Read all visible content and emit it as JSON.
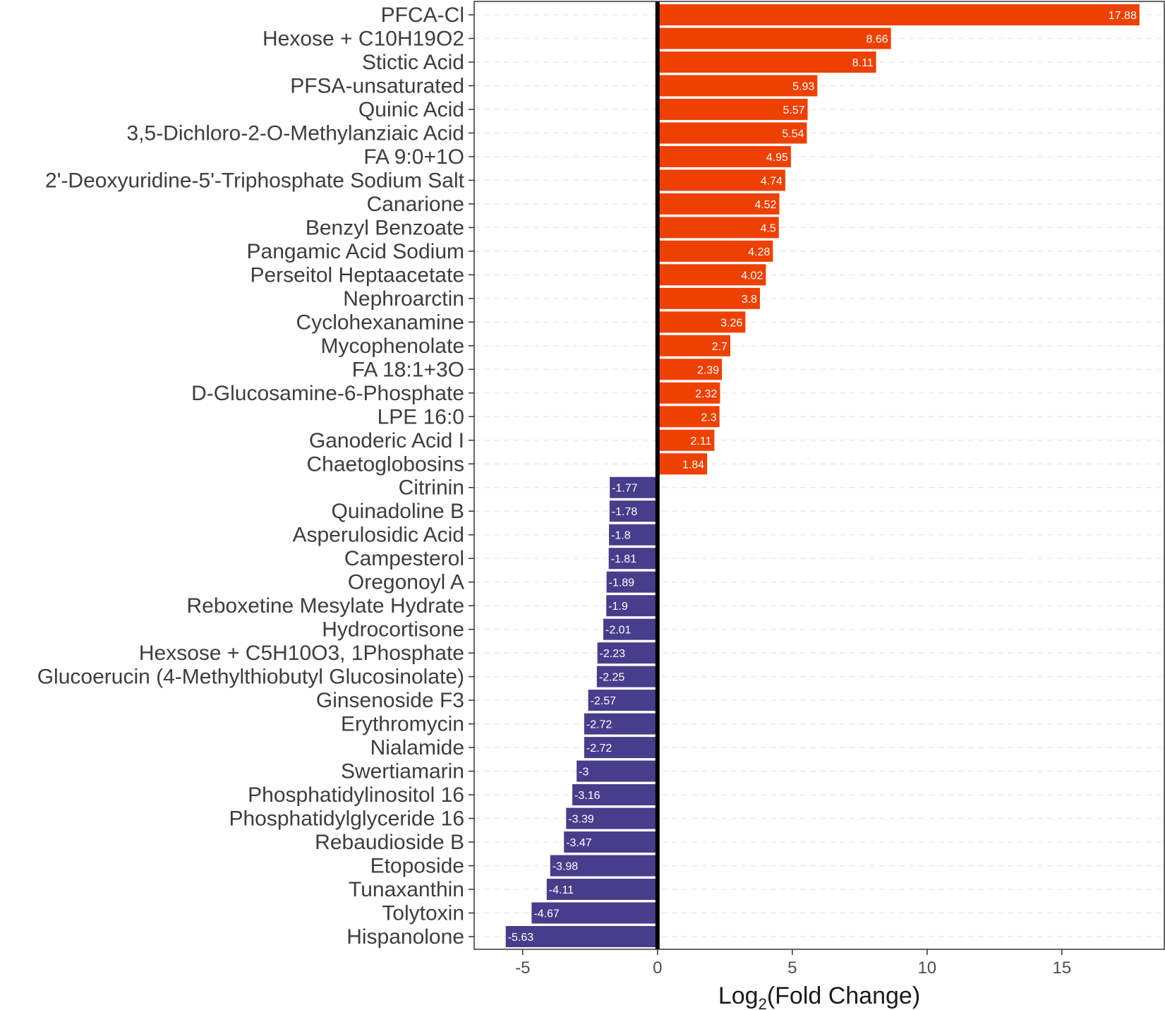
{
  "chart_data": {
    "type": "bar",
    "orientation": "horizontal",
    "title": "",
    "xlabel": "Log2(Fold Change)",
    "xlabel_parts": {
      "prefix": "Log",
      "subscript": "2",
      "suffix": "(Fold Change)"
    },
    "ylabel": "",
    "xlim": [
      -6.8,
      18.8
    ],
    "xticks": [
      -5,
      0,
      5,
      10,
      15
    ],
    "xtick_labels": [
      "-5",
      "0",
      "5",
      "10",
      "15"
    ],
    "grid": "dashed horizontal",
    "colors": {
      "positive": "#EE4000",
      "negative": "#483D8B",
      "zero_line": "#000000"
    },
    "categories": [
      "PFCA-Cl",
      "Hexose + C10H19O2",
      "Stictic Acid",
      "PFSA-unsaturated",
      "Quinic Acid",
      "3,5-Dichloro-2-O-Methylanziaic Acid",
      "FA 9:0+1O",
      "2'-Deoxyuridine-5'-Triphosphate Sodium Salt",
      "Canarione",
      "Benzyl Benzoate",
      "Pangamic Acid Sodium",
      "Perseitol Heptaacetate",
      "Nephroarctin",
      "Cyclohexanamine",
      "Mycophenolate",
      "FA 18:1+3O",
      "D-Glucosamine-6-Phosphate",
      "LPE 16:0",
      "Ganoderic Acid I",
      "Chaetoglobosins",
      "Citrinin",
      "Quinadoline B",
      "Asperulosidic Acid",
      "Campesterol",
      "Oregonoyl A",
      "Reboxetine Mesylate Hydrate",
      "Hydrocortisone",
      "Hexsose + C5H10O3, 1Phosphate",
      "Glucoerucin (4-Methylthiobutyl Glucosinolate)",
      "Ginsenoside F3",
      "Erythromycin",
      "Nialamide",
      "Swertiamarin",
      "Phosphatidylinositol 16",
      "Phosphatidylglyceride 16",
      "Rebaudioside B",
      "Etoposide",
      "Tunaxanthin",
      "Tolytoxin",
      "Hispanolone"
    ],
    "values": [
      17.88,
      8.66,
      8.11,
      5.93,
      5.57,
      5.54,
      4.95,
      4.74,
      4.52,
      4.5,
      4.28,
      4.02,
      3.8,
      3.26,
      2.7,
      2.39,
      2.32,
      2.3,
      2.11,
      1.84,
      -1.77,
      -1.78,
      -1.8,
      -1.81,
      -1.89,
      -1.9,
      -2.01,
      -2.23,
      -2.25,
      -2.57,
      -2.72,
      -2.72,
      -3,
      -3.16,
      -3.39,
      -3.47,
      -3.98,
      -4.11,
      -4.67,
      -5.63
    ],
    "value_labels": [
      "17.88",
      "8.66",
      "8.11",
      "5.93",
      "5.57",
      "5.54",
      "4.95",
      "4.74",
      "4.52",
      "4.5",
      "4.28",
      "4.02",
      "3.8",
      "3.26",
      "2.7",
      "2.39",
      "2.32",
      "2.3",
      "2.11",
      "1.84",
      "-1.77",
      "-1.78",
      "-1.8",
      "-1.81",
      "-1.89",
      "-1.9",
      "-2.01",
      "-2.23",
      "-2.25",
      "-2.57",
      "-2.72",
      "-2.72",
      "-3",
      "-3.16",
      "-3.39",
      "-3.47",
      "-3.98",
      "-4.11",
      "-4.67",
      "-5.63"
    ]
  }
}
